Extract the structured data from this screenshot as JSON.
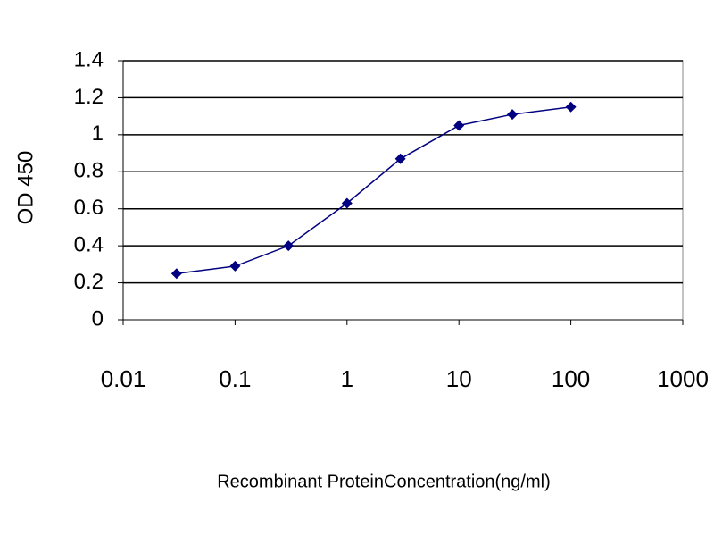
{
  "chart_data": {
    "type": "line",
    "x_label": "Recombinant ProteinConcentration(ng/ml)",
    "y_label": "OD 450",
    "x": [
      0.03,
      0.1,
      0.3,
      1,
      3,
      10,
      30,
      100
    ],
    "values": [
      0.25,
      0.29,
      0.4,
      0.63,
      0.87,
      1.05,
      1.11,
      1.15
    ],
    "color": "#000080",
    "xlog": true,
    "xlim": [
      0.01,
      1000
    ],
    "xticks": [
      0.01,
      0.1,
      1,
      10,
      100,
      1000
    ],
    "ylim": [
      0,
      1.4
    ],
    "yticks": [
      0,
      0.2,
      0.4,
      0.6,
      0.8,
      1,
      1.2,
      1.4
    ],
    "grid": true
  }
}
